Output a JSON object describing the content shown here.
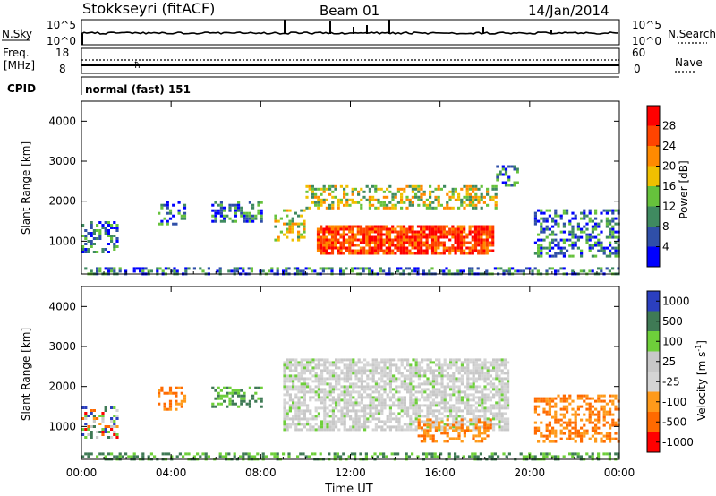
{
  "header": {
    "station": "Stokkseyri (fitACF)",
    "beam": "Beam 01",
    "date": "14/Jan/2014"
  },
  "summary_panels": {
    "nsky_label": "N.Sky",
    "nsearch_label": "N.Search",
    "nsky_ticks": [
      "10^5",
      "10^0"
    ],
    "nsearch_ticks": [
      "10^5",
      "10^0"
    ],
    "freq_label": "Freq.",
    "freq_unit": "[MHz]",
    "freq_ticks": [
      "18",
      "8"
    ],
    "nave_label": "Nave",
    "nave_ticks": [
      "60",
      "0"
    ],
    "cpid_label": "CPID",
    "cpid_text": "normal (fast) 151"
  },
  "colors": {
    "power_scale": [
      "#0000ff",
      "#2f4fa8",
      "#3f8a60",
      "#66c23c",
      "#f0c000",
      "#ff8a00",
      "#ff4400",
      "#ff0000"
    ],
    "velocity_scale": [
      "#2b3fbf",
      "#3f7a55",
      "#6ecf3a",
      "#c8c8c8",
      "#d4d4d4",
      "#ff9a1a",
      "#ff6a00",
      "#ff0000"
    ],
    "ground_scatter": "#9a9a9a"
  },
  "chart_data": [
    {
      "type": "heatmap",
      "panel": "power",
      "ylabel": "Slant Range [km]",
      "y_ticks": [
        1000,
        2000,
        3000,
        4000
      ],
      "ylim": [
        180,
        4500
      ],
      "x_ticks": [
        "00:00",
        "04:00",
        "08:00",
        "12:00",
        "16:00",
        "20:00",
        "00:00"
      ],
      "xlim_hours": [
        0,
        24
      ],
      "colorbar": {
        "label": "Power [dB]",
        "ticks": [
          4,
          8,
          12,
          16,
          20,
          24,
          28
        ]
      },
      "regions": [
        {
          "t": [
            0.0,
            1.6
          ],
          "r": [
            700,
            1500
          ],
          "level": "low"
        },
        {
          "t": [
            3.4,
            4.6
          ],
          "r": [
            1400,
            2000
          ],
          "level": "low"
        },
        {
          "t": [
            5.8,
            8.0
          ],
          "r": [
            1500,
            2000
          ],
          "level": "low"
        },
        {
          "t": [
            8.6,
            10.0
          ],
          "r": [
            1000,
            1800
          ],
          "level": "mid"
        },
        {
          "t": [
            10.0,
            18.5
          ],
          "r": [
            1800,
            2400
          ],
          "level": "mid"
        },
        {
          "t": [
            10.5,
            18.3
          ],
          "r": [
            700,
            1400
          ],
          "level": "high"
        },
        {
          "t": [
            18.5,
            19.5
          ],
          "r": [
            2400,
            2900
          ],
          "level": "low"
        },
        {
          "t": [
            20.2,
            24.0
          ],
          "r": [
            600,
            1800
          ],
          "level": "low"
        },
        {
          "t": [
            0.0,
            24.0
          ],
          "r": [
            180,
            350
          ],
          "level": "low"
        }
      ]
    },
    {
      "type": "heatmap",
      "panel": "velocity",
      "ylabel": "Slant Range [km]",
      "y_ticks": [
        1000,
        2000,
        3000,
        4000
      ],
      "ylim": [
        180,
        4500
      ],
      "x_ticks": [
        "00:00",
        "04:00",
        "08:00",
        "12:00",
        "16:00",
        "20:00",
        "00:00"
      ],
      "xlabel": "Time UT",
      "xlim_hours": [
        0,
        24
      ],
      "colorbar": {
        "label": "Velocity [m s^-1]",
        "ticks": [
          1000,
          500,
          100,
          25,
          -25,
          -100,
          -500,
          -1000
        ]
      },
      "regions": [
        {
          "t": [
            0.0,
            1.6
          ],
          "r": [
            700,
            1500
          ],
          "level": "mixed"
        },
        {
          "t": [
            3.4,
            4.6
          ],
          "r": [
            1400,
            2000
          ],
          "level": "away"
        },
        {
          "t": [
            5.8,
            8.0
          ],
          "r": [
            1500,
            2000
          ],
          "level": "toward"
        },
        {
          "t": [
            9.0,
            19.0
          ],
          "r": [
            900,
            2700
          ],
          "level": "ground"
        },
        {
          "t": [
            15.0,
            18.3
          ],
          "r": [
            600,
            1200
          ],
          "level": "away"
        },
        {
          "t": [
            20.2,
            24.0
          ],
          "r": [
            600,
            1800
          ],
          "level": "away"
        },
        {
          "t": [
            0.0,
            24.0
          ],
          "r": [
            180,
            350
          ],
          "level": "toward"
        }
      ]
    }
  ]
}
